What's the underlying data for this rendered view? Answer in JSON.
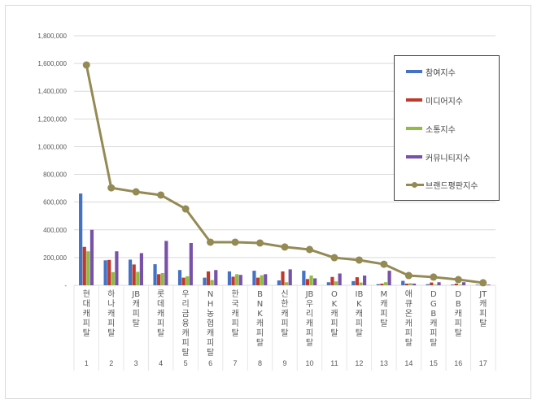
{
  "chart_data": {
    "type": "bar",
    "title": "",
    "xlabel": "",
    "ylabel": "",
    "ylim": [
      0,
      1800000
    ],
    "yticks": [
      "-",
      "200,000",
      "400,000",
      "600,000",
      "800,000",
      "1,000,000",
      "1,200,000",
      "1,400,000",
      "1,600,000",
      "1,800,000"
    ],
    "grid": true,
    "legend_position": "right-inset",
    "categories": [
      "현대캐피탈",
      "하나캐피탈",
      "JB캐피탈",
      "롯데캐피탈",
      "우리금융캐피탈",
      "NH농협캐피탈",
      "한국캐피탈",
      "BNK캐피탈",
      "신한캐피탈",
      "JB우리캐피탈",
      "OK캐피탈",
      "IBK캐피탈",
      "M캐피탈",
      "애큐온캐피탈",
      "DGB캐피탈",
      "DB캐피탈",
      "JT캐피탈"
    ],
    "category_numbers": [
      "1",
      "2",
      "3",
      "4",
      "5",
      "6",
      "7",
      "8",
      "9",
      "10",
      "11",
      "12",
      "13",
      "14",
      "15",
      "16",
      "17"
    ],
    "series": [
      {
        "name": "참여지수",
        "type": "bar",
        "color": "#4472c4",
        "values": [
          662000,
          180000,
          185000,
          152000,
          110000,
          55000,
          100000,
          105000,
          35000,
          105000,
          22000,
          30000,
          8000,
          32000,
          8000,
          5000,
          4000
        ]
      },
      {
        "name": "미디어지수",
        "type": "bar",
        "color": "#c0392b",
        "values": [
          277000,
          183000,
          150000,
          80000,
          55000,
          100000,
          62000,
          55000,
          100000,
          45000,
          60000,
          58000,
          12000,
          12000,
          20000,
          12000,
          2000
        ]
      },
      {
        "name": "소통지수",
        "type": "bar",
        "color": "#8fbc45",
        "values": [
          245000,
          95000,
          97000,
          88000,
          65000,
          38000,
          80000,
          72000,
          22000,
          70000,
          28000,
          20000,
          22000,
          15000,
          5000,
          5000,
          1000
        ]
      },
      {
        "name": "커뮤니티지수",
        "type": "bar",
        "color": "#7851a9",
        "values": [
          400000,
          245000,
          232000,
          320000,
          305000,
          110000,
          75000,
          80000,
          115000,
          50000,
          85000,
          70000,
          105000,
          12000,
          22000,
          22000,
          5000
        ]
      },
      {
        "name": "브랜드평판지수",
        "type": "line",
        "color": "#948a54",
        "values": [
          1589000,
          703000,
          674000,
          651000,
          551000,
          311000,
          311000,
          305000,
          276000,
          258000,
          199000,
          182000,
          152000,
          70000,
          59000,
          41000,
          18000
        ]
      }
    ]
  },
  "legend": {
    "items": [
      "참여지수",
      "미디어지수",
      "소통지수",
      "커뮤니티지수",
      "브랜드평판지수"
    ]
  }
}
